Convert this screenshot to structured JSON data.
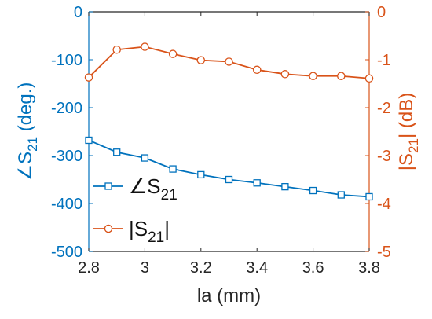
{
  "chart_data": {
    "type": "line",
    "x": [
      2.8,
      2.9,
      3.0,
      3.1,
      3.2,
      3.3,
      3.4,
      3.5,
      3.6,
      3.7,
      3.8
    ],
    "xlabel": "la (mm)",
    "xlim": [
      2.8,
      3.8
    ],
    "xticks": [
      "2.8",
      "3",
      "3.2",
      "3.4",
      "3.6",
      "3.8"
    ],
    "left_axis": {
      "label_symbol": "∠S",
      "label_sub": "21",
      "label_suffix": " (deg.)",
      "ylim": [
        -500,
        0
      ],
      "ticks": [
        "0",
        "-100",
        "-200",
        "-300",
        "-400",
        "-500"
      ],
      "color": "#0072BD"
    },
    "right_axis": {
      "label_prefix": "|S",
      "label_sub": "21",
      "label_suffix": "| (dB)",
      "ylim": [
        -5,
        0
      ],
      "ticks": [
        "0",
        "-1",
        "-2",
        "-3",
        "-4",
        "-5"
      ],
      "color": "#D95319"
    },
    "series": [
      {
        "legend_main": "∠S",
        "legend_sub": "21",
        "legend_tail": "",
        "axis": "left",
        "marker": "square",
        "color": "#0072BD",
        "values": [
          -268,
          -293,
          -305,
          -328,
          -340,
          -350,
          -357,
          -365,
          -373,
          -382,
          -386
        ]
      },
      {
        "legend_main": "|S",
        "legend_sub": "21",
        "legend_tail": "|",
        "axis": "right",
        "marker": "circle",
        "color": "#D95319",
        "values": [
          -1.37,
          -0.79,
          -0.73,
          -0.88,
          -1.01,
          -1.04,
          -1.21,
          -1.3,
          -1.34,
          -1.34,
          -1.39
        ]
      }
    ],
    "grid": false,
    "legend_position": "lower-left"
  }
}
